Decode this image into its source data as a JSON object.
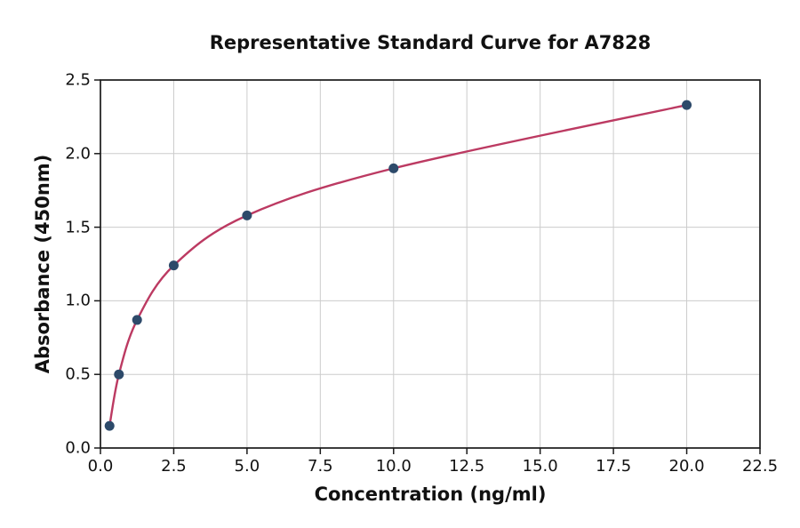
{
  "chart_data": {
    "type": "scatter",
    "title": "Representative Standard Curve for A7828",
    "xlabel": "Concentration (ng/ml)",
    "ylabel": "Absorbance (450nm)",
    "xlim": [
      0,
      22.5
    ],
    "ylim": [
      0,
      2.5
    ],
    "xticks": [
      0,
      2.5,
      5,
      7.5,
      10,
      12.5,
      15,
      17.5,
      20,
      22.5
    ],
    "xtick_labels": [
      "0.0",
      "2.5",
      "5.0",
      "7.5",
      "10.0",
      "12.5",
      "15.0",
      "17.5",
      "20.0",
      "22.5"
    ],
    "yticks": [
      0,
      0.5,
      1,
      1.5,
      2,
      2.5
    ],
    "ytick_labels": [
      "0.0",
      "0.5",
      "1.0",
      "1.5",
      "2.0",
      "2.5"
    ],
    "grid": true,
    "legend": null,
    "points": [
      {
        "x": 0.31,
        "y": 0.15
      },
      {
        "x": 0.63,
        "y": 0.5
      },
      {
        "x": 1.25,
        "y": 0.87
      },
      {
        "x": 2.5,
        "y": 1.24
      },
      {
        "x": 5,
        "y": 1.58
      },
      {
        "x": 10,
        "y": 1.9
      },
      {
        "x": 20,
        "y": 2.33
      }
    ],
    "fit_curve": "smooth curve through standards",
    "colors": {
      "point": "#2d4a6a",
      "curve": "#bc3a62",
      "grid": "#cccccc",
      "spine": "#1a1a1a",
      "text": "#111111",
      "background": "#ffffff"
    },
    "style": {
      "marker_radius": 5.5,
      "curve_width": 2.4,
      "tick_length": 7
    }
  }
}
